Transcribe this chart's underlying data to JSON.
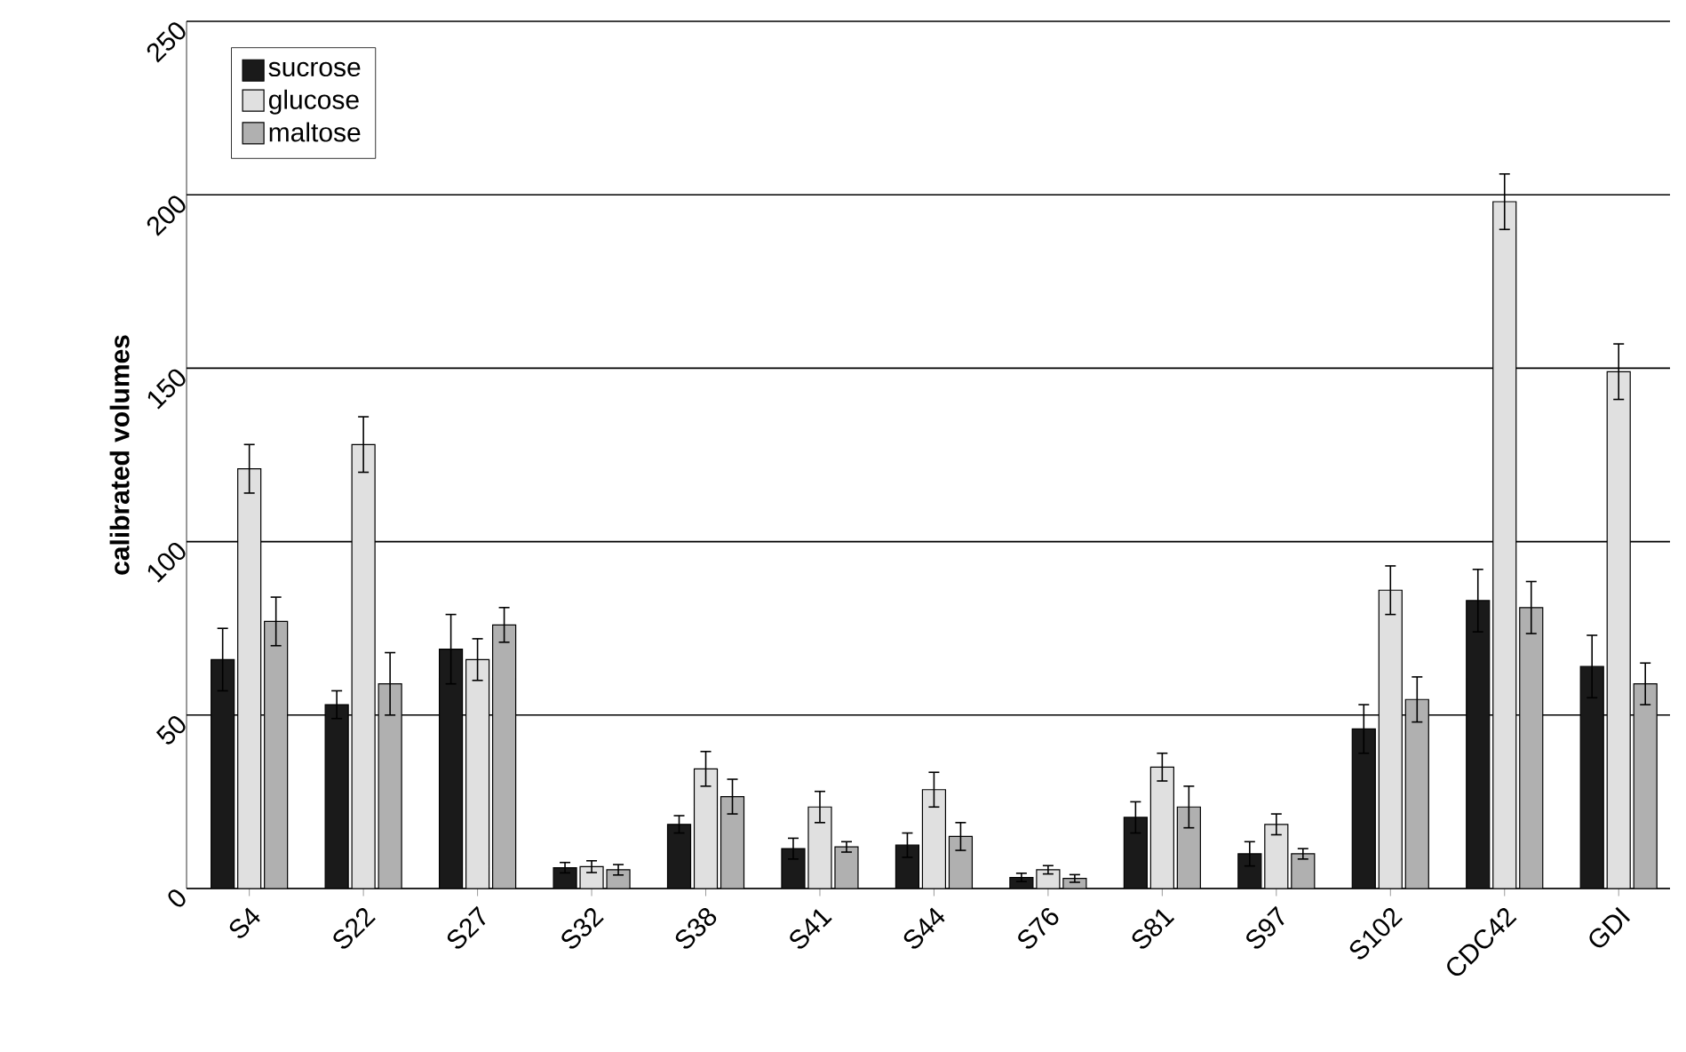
{
  "chart_data": {
    "type": "bar",
    "ylabel": "calibrated volumes",
    "categories": [
      "S4",
      "S22",
      "S27",
      "S32",
      "S38",
      "S41",
      "S44",
      "S76",
      "S81",
      "S97",
      "S102",
      "CDC42",
      "GDI"
    ],
    "series": [
      {
        "name": "sucrose",
        "color": "#1a1a1a",
        "values": [
          66,
          53,
          69,
          6,
          18.5,
          11.5,
          12.5,
          3.2,
          20.5,
          10,
          46,
          83,
          64
        ],
        "errors": [
          9,
          4,
          10,
          1.5,
          2.5,
          3,
          3.5,
          1.2,
          4.5,
          3.5,
          7,
          9,
          9
        ]
      },
      {
        "name": "glucose",
        "color": "#e0e0e0",
        "values": [
          121,
          128,
          66,
          6.3,
          34.5,
          23.5,
          28.5,
          5.4,
          35,
          18.5,
          86,
          198,
          149
        ],
        "errors": [
          7,
          8,
          6,
          1.7,
          5,
          4.5,
          5,
          1.2,
          4,
          3,
          7,
          8,
          8
        ]
      },
      {
        "name": "maltose",
        "color": "#b0b0b0",
        "values": [
          77,
          59,
          76,
          5.4,
          26.5,
          12,
          15,
          2.9,
          23.5,
          10,
          54.5,
          81,
          59
        ],
        "errors": [
          7,
          9,
          5,
          1.5,
          5,
          1.5,
          4,
          1.1,
          6,
          1.5,
          6.5,
          7.5,
          6
        ]
      }
    ],
    "ylim": [
      0,
      250
    ],
    "yticks": [
      0,
      50,
      100,
      150,
      200,
      250
    ],
    "grid": "y",
    "legend": "top left"
  }
}
